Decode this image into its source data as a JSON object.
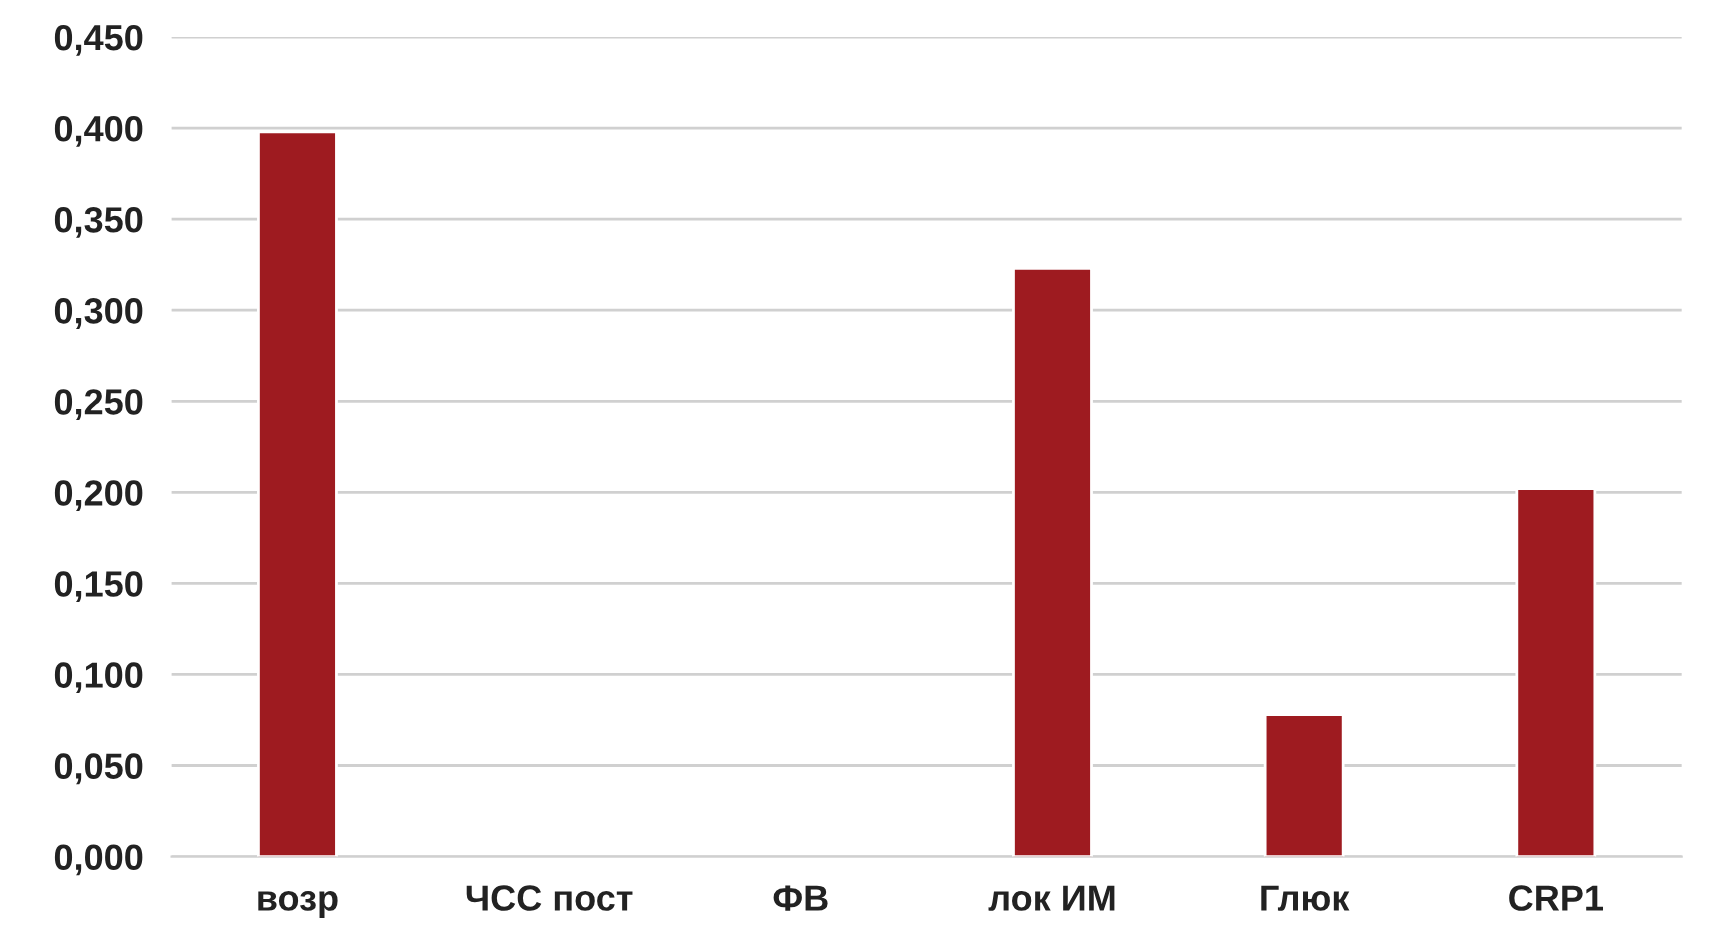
{
  "chart_data": {
    "type": "bar",
    "categories": [
      "возр",
      "ЧСС пост",
      "ФВ",
      "лок ИМ",
      "Глюк",
      "CRP1"
    ],
    "values": [
      0.398,
      null,
      null,
      0.323,
      0.078,
      0.202
    ],
    "color": "#9e1b20",
    "ylim": [
      0,
      0.45
    ],
    "yticks": [
      {
        "value": 0,
        "label": "0,000"
      },
      {
        "value": 0.05,
        "label": "0,050"
      },
      {
        "value": 0.1,
        "label": "0,100"
      },
      {
        "value": 0.15,
        "label": "0,150"
      },
      {
        "value": 0.2,
        "label": "0,200"
      },
      {
        "value": 0.25,
        "label": "0,250"
      },
      {
        "value": 0.3,
        "label": "0,300"
      },
      {
        "value": 0.35,
        "label": "0,350"
      },
      {
        "value": 0.4,
        "label": "0,400"
      },
      {
        "value": 0.45,
        "label": "0,450"
      }
    ],
    "grid": "y"
  }
}
